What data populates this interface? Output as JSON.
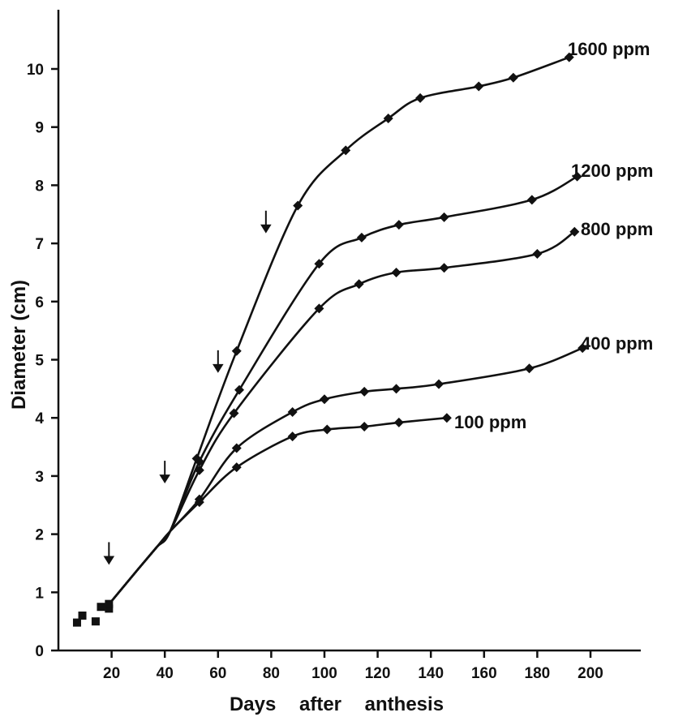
{
  "chart_data": {
    "type": "line",
    "title": "",
    "xlabel": "Days after anthesis",
    "ylabel": "Diameter (cm)",
    "xlim": [
      0,
      210
    ],
    "ylim": [
      0,
      10.5
    ],
    "x_ticks": [
      20,
      40,
      60,
      80,
      100,
      120,
      140,
      160,
      180,
      200
    ],
    "y_ticks": [
      0,
      1,
      2,
      3,
      4,
      5,
      6,
      7,
      8,
      9,
      10
    ],
    "grid": false,
    "legend": "none (series labeled at line ends)",
    "early_points": {
      "marker": "square",
      "points": [
        [
          7,
          0.48
        ],
        [
          9,
          0.6
        ],
        [
          14,
          0.5
        ],
        [
          16,
          0.75
        ],
        [
          19,
          0.72
        ],
        [
          19,
          0.8
        ]
      ]
    },
    "series": [
      {
        "name": "1600 ppm",
        "points": [
          [
            52,
            3.3
          ],
          [
            67,
            5.15
          ],
          [
            90,
            7.65
          ],
          [
            108,
            8.6
          ],
          [
            124,
            9.15
          ],
          [
            136,
            9.5
          ],
          [
            158,
            9.7
          ],
          [
            171,
            9.85
          ],
          [
            192,
            10.2
          ]
        ]
      },
      {
        "name": "1200 ppm",
        "points": [
          [
            53,
            3.25
          ],
          [
            68,
            4.48
          ],
          [
            98,
            6.65
          ],
          [
            114,
            7.1
          ],
          [
            128,
            7.32
          ],
          [
            145,
            7.45
          ],
          [
            178,
            7.75
          ],
          [
            195,
            8.15
          ]
        ]
      },
      {
        "name": "800 ppm",
        "points": [
          [
            53,
            3.1
          ],
          [
            66,
            4.08
          ],
          [
            98,
            5.88
          ],
          [
            113,
            6.3
          ],
          [
            127,
            6.5
          ],
          [
            145,
            6.58
          ],
          [
            180,
            6.82
          ],
          [
            194,
            7.2
          ]
        ]
      },
      {
        "name": "400 ppm",
        "points": [
          [
            53,
            2.6
          ],
          [
            67,
            3.48
          ],
          [
            88,
            4.1
          ],
          [
            100,
            4.32
          ],
          [
            115,
            4.45
          ],
          [
            127,
            4.5
          ],
          [
            143,
            4.58
          ],
          [
            177,
            4.85
          ],
          [
            197,
            5.2
          ]
        ]
      },
      {
        "name": "100 ppm",
        "points": [
          [
            53,
            2.55
          ],
          [
            67,
            3.15
          ],
          [
            88,
            3.68
          ],
          [
            101,
            3.8
          ],
          [
            115,
            3.85
          ],
          [
            128,
            3.92
          ],
          [
            146,
            4.0
          ]
        ]
      }
    ],
    "annotations": [
      {
        "type": "arrow-down",
        "x": 19,
        "y": 1.5
      },
      {
        "type": "arrow-down",
        "x": 40,
        "y": 2.9
      },
      {
        "type": "arrow-down",
        "x": 60,
        "y": 4.8
      },
      {
        "type": "arrow-down",
        "x": 78,
        "y": 7.2
      }
    ]
  }
}
